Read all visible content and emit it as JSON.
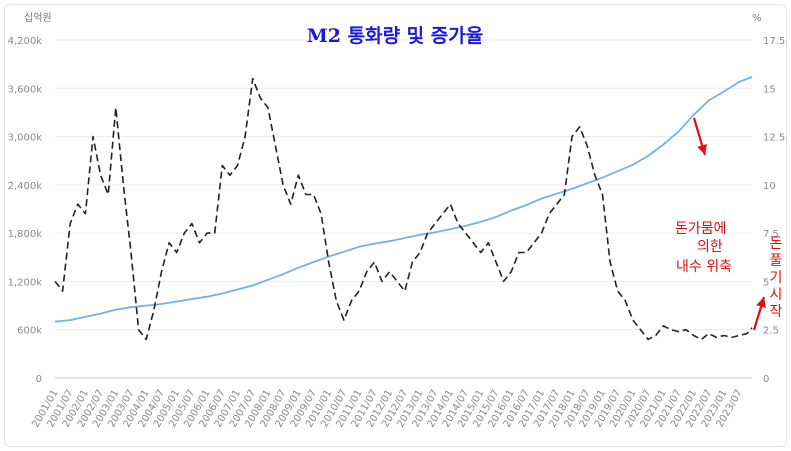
{
  "chart_data": {
    "type": "line",
    "title": "M2 통화량 및 증가율",
    "left_unit": "십억원",
    "right_unit": "%",
    "left_ticks": [
      "0",
      "600k",
      "1,200k",
      "1,800k",
      "2,400k",
      "3,000k",
      "3,600k",
      "4,200k"
    ],
    "left_tick_values": [
      0,
      600,
      1200,
      1800,
      2400,
      3000,
      3600,
      4200
    ],
    "right_ticks": [
      "0",
      "2.5",
      "5",
      "7.5",
      "10",
      "12.5",
      "15",
      "17.5"
    ],
    "right_tick_values": [
      0,
      2.5,
      5,
      7.5,
      10,
      12.5,
      15,
      17.5
    ],
    "left_range": [
      0,
      4200
    ],
    "right_range": [
      0,
      17.5
    ],
    "x_labels": [
      "2001/01",
      "2001/07",
      "2002/01",
      "2002/07",
      "2003/01",
      "2003/07",
      "2004/01",
      "2004/07",
      "2005/01",
      "2005/07",
      "2006/01",
      "2006/07",
      "2007/01",
      "2007/07",
      "2008/01",
      "2008/07",
      "2009/01",
      "2009/07",
      "2010/01",
      "2010/07",
      "2011/01",
      "2011/07",
      "2012/01",
      "2012/07",
      "2013/01",
      "2013/07",
      "2014/01",
      "2014/07",
      "2015/01",
      "2015/07",
      "2016/01",
      "2016/07",
      "2017/01",
      "2017/07",
      "2018/01",
      "2018/07",
      "2019/01",
      "2019/07",
      "2020/01",
      "2020/07",
      "2021/01",
      "2021/07",
      "2022/01",
      "2022/07",
      "2023/01",
      "2023/07"
    ],
    "grid": true,
    "legend": "none",
    "series": [
      {
        "axis": "left",
        "color": "#7ab0de",
        "style": "solid",
        "x": [
          "2001/01",
          "2001/07",
          "2002/01",
          "2002/07",
          "2003/01",
          "2003/07",
          "2004/01",
          "2004/07",
          "2005/01",
          "2005/07",
          "2006/01",
          "2006/07",
          "2007/01",
          "2007/07",
          "2008/01",
          "2008/07",
          "2009/01",
          "2009/07",
          "2010/01",
          "2010/07",
          "2011/01",
          "2011/07",
          "2012/01",
          "2012/07",
          "2013/01",
          "2013/07",
          "2014/01",
          "2014/07",
          "2015/01",
          "2015/07",
          "2016/01",
          "2016/07",
          "2017/01",
          "2017/07",
          "2018/01",
          "2018/07",
          "2019/01",
          "2019/07",
          "2020/01",
          "2020/07",
          "2021/01",
          "2021/07",
          "2022/01",
          "2022/07",
          "2023/01",
          "2023/07",
          "2023/12"
        ],
        "values": [
          700,
          720,
          760,
          800,
          850,
          880,
          900,
          920,
          950,
          980,
          1010,
          1050,
          1100,
          1150,
          1220,
          1290,
          1370,
          1440,
          1510,
          1570,
          1630,
          1670,
          1700,
          1740,
          1780,
          1810,
          1850,
          1890,
          1940,
          2000,
          2080,
          2150,
          2230,
          2290,
          2350,
          2420,
          2490,
          2570,
          2650,
          2760,
          2900,
          3060,
          3270,
          3450,
          3560,
          3680,
          3740
        ]
      },
      {
        "axis": "right",
        "color": "#222222",
        "style": "dashed",
        "x": [
          "2001/01",
          "2001/04",
          "2001/07",
          "2001/10",
          "2002/01",
          "2002/04",
          "2002/07",
          "2002/10",
          "2003/01",
          "2003/04",
          "2003/07",
          "2003/10",
          "2004/01",
          "2004/04",
          "2004/07",
          "2004/10",
          "2005/01",
          "2005/04",
          "2005/07",
          "2005/10",
          "2006/01",
          "2006/04",
          "2006/07",
          "2006/10",
          "2007/01",
          "2007/04",
          "2007/07",
          "2007/10",
          "2008/01",
          "2008/04",
          "2008/07",
          "2008/10",
          "2009/01",
          "2009/04",
          "2009/07",
          "2009/10",
          "2010/01",
          "2010/04",
          "2010/07",
          "2010/10",
          "2011/01",
          "2011/04",
          "2011/07",
          "2011/10",
          "2012/01",
          "2012/04",
          "2012/07",
          "2012/10",
          "2013/01",
          "2013/04",
          "2013/07",
          "2013/10",
          "2014/01",
          "2014/04",
          "2014/07",
          "2014/10",
          "2015/01",
          "2015/04",
          "2015/07",
          "2015/10",
          "2016/01",
          "2016/04",
          "2016/07",
          "2016/10",
          "2017/01",
          "2017/04",
          "2017/07",
          "2017/10",
          "2018/01",
          "2018/04",
          "2018/07",
          "2018/10",
          "2019/01",
          "2019/04",
          "2019/07",
          "2019/10",
          "2020/01",
          "2020/04",
          "2020/07",
          "2020/10",
          "2021/01",
          "2021/04",
          "2021/07",
          "2021/10",
          "2022/01",
          "2022/04",
          "2022/07",
          "2022/10",
          "2023/01",
          "2023/04",
          "2023/07",
          "2023/10",
          "2023/12"
        ],
        "values": [
          5.0,
          4.5,
          8.0,
          9.0,
          8.5,
          12.5,
          10.5,
          9.5,
          14.0,
          10.0,
          6.5,
          2.5,
          2.0,
          3.5,
          5.5,
          7.0,
          6.5,
          7.5,
          8.0,
          7.0,
          7.5,
          7.5,
          11.0,
          10.5,
          11.0,
          12.5,
          15.5,
          14.5,
          14.0,
          12.0,
          10.0,
          9.0,
          10.5,
          9.5,
          9.5,
          8.5,
          6.0,
          4.0,
          3.0,
          4.0,
          4.5,
          5.5,
          6.0,
          5.0,
          5.5,
          5.0,
          4.5,
          6.0,
          6.5,
          7.5,
          8.0,
          8.5,
          9.0,
          8.0,
          7.5,
          7.0,
          6.5,
          7.0,
          6.0,
          5.0,
          5.5,
          6.5,
          6.5,
          7.0,
          7.5,
          8.5,
          9.0,
          9.5,
          12.5,
          13.0,
          12.0,
          10.5,
          9.5,
          6.0,
          4.5,
          4.0,
          3.0,
          2.5,
          2.0,
          2.2,
          2.7,
          2.5,
          2.4,
          2.5,
          2.2,
          2.0,
          2.3,
          2.1,
          2.2,
          2.1,
          2.2,
          2.3,
          2.6
        ]
      }
    ],
    "annotations": [
      {
        "lines": [
          "돈가뭄에",
          "의한",
          "내수 위축"
        ],
        "color": "#e01010"
      },
      {
        "lines": [
          "돈",
          "풀",
          "기",
          "시",
          "작"
        ],
        "color": "#e01010",
        "orientation": "vertical"
      }
    ]
  }
}
